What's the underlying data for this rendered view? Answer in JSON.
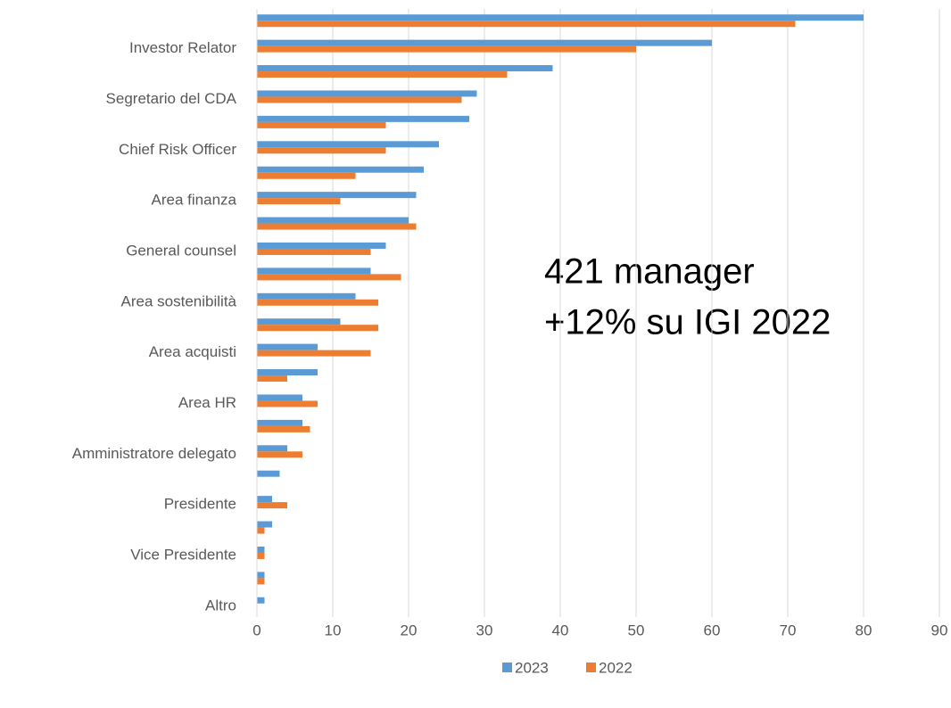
{
  "chart_data": {
    "type": "hbar",
    "categories": [
      null,
      "Investor Relator",
      null,
      "Segretario del CDA",
      null,
      "Chief Risk Officer",
      null,
      "Area finanza",
      null,
      "General counsel",
      null,
      "Area sostenibilità",
      null,
      "Area acquisti",
      null,
      "Area HR",
      null,
      "Amministratore delegato",
      null,
      "Presidente",
      null,
      "Vice Presidente",
      null,
      "Altro"
    ],
    "series": [
      {
        "name": "2023",
        "color": "#5b9bd5",
        "values": [
          80,
          60,
          39,
          29,
          28,
          24,
          22,
          21,
          20,
          17,
          15,
          13,
          11,
          8,
          8,
          6,
          6,
          4,
          3,
          2,
          2,
          1,
          1,
          1
        ]
      },
      {
        "name": "2022",
        "color": "#ed7d31",
        "values": [
          71,
          50,
          33,
          27,
          17,
          17,
          13,
          11,
          21,
          15,
          19,
          16,
          16,
          15,
          4,
          8,
          7,
          6,
          0,
          4,
          1,
          1,
          1,
          0
        ]
      }
    ],
    "xlim": [
      0,
      90
    ],
    "xticks": [
      0,
      10,
      20,
      30,
      40,
      50,
      60,
      70,
      80,
      90
    ],
    "grid": true,
    "legend": "bottom",
    "annotations": [
      "421 manager",
      "+12% su IGI 2022"
    ]
  }
}
